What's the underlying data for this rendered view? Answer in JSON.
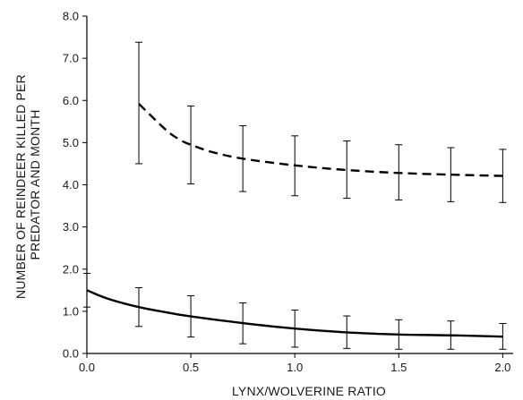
{
  "chart_data": {
    "type": "line",
    "title": "",
    "xlabel": "LYNX/WOLVERINE RATIO",
    "ylabel_lines": [
      "NUMBER OF REINDEER KILLED PER",
      "PREDATOR AND MONTH"
    ],
    "xlim": [
      0,
      2.05
    ],
    "ylim": [
      0,
      8.0
    ],
    "x_ticks": [
      0.0,
      0.5,
      1.0,
      1.5,
      2.0
    ],
    "x_tick_labels": [
      "0.0",
      "0.5",
      "1.0",
      "1.5",
      "2.0"
    ],
    "y_ticks": [
      0.0,
      1.0,
      2.0,
      3.0,
      4.0,
      5.0,
      6.0,
      7.0,
      8.0
    ],
    "y_tick_labels": [
      "0.0",
      "1.0",
      "2.0",
      "3.0",
      "4.0",
      "5.0",
      "6.0",
      "7.0",
      "8.0"
    ],
    "grid": false,
    "legend": "none",
    "series": [
      {
        "style": "dashed",
        "color": "#000000",
        "curve": [
          [
            0.25,
            5.92
          ],
          [
            0.3,
            5.68
          ],
          [
            0.35,
            5.44
          ],
          [
            0.4,
            5.22
          ],
          [
            0.45,
            5.06
          ],
          [
            0.5,
            4.95
          ],
          [
            0.6,
            4.78
          ],
          [
            0.75,
            4.62
          ],
          [
            1.0,
            4.46
          ],
          [
            1.25,
            4.35
          ],
          [
            1.5,
            4.28
          ],
          [
            1.75,
            4.24
          ],
          [
            2.0,
            4.21
          ]
        ],
        "error_bars": [
          {
            "x": 0.25,
            "low": 4.5,
            "high": 7.38
          },
          {
            "x": 0.5,
            "low": 4.02,
            "high": 5.87
          },
          {
            "x": 0.75,
            "low": 3.84,
            "high": 5.4
          },
          {
            "x": 1.0,
            "low": 3.74,
            "high": 5.16
          },
          {
            "x": 1.25,
            "low": 3.68,
            "high": 5.04
          },
          {
            "x": 1.5,
            "low": 3.64,
            "high": 4.95
          },
          {
            "x": 1.75,
            "low": 3.6,
            "high": 4.88
          },
          {
            "x": 2.0,
            "low": 3.58,
            "high": 4.84
          }
        ]
      },
      {
        "style": "solid",
        "color": "#000000",
        "curve": [
          [
            0.0,
            1.5
          ],
          [
            0.1,
            1.3
          ],
          [
            0.25,
            1.1
          ],
          [
            0.4,
            0.96
          ],
          [
            0.5,
            0.88
          ],
          [
            0.75,
            0.72
          ],
          [
            1.0,
            0.59
          ],
          [
            1.25,
            0.5
          ],
          [
            1.5,
            0.45
          ],
          [
            1.75,
            0.43
          ],
          [
            2.0,
            0.4
          ]
        ],
        "error_bars": [
          {
            "x": 0.0,
            "low": 1.1,
            "high": 1.9
          },
          {
            "x": 0.25,
            "low": 0.64,
            "high": 1.56
          },
          {
            "x": 0.5,
            "low": 0.39,
            "high": 1.37
          },
          {
            "x": 0.75,
            "low": 0.23,
            "high": 1.2
          },
          {
            "x": 1.0,
            "low": 0.15,
            "high": 1.03
          },
          {
            "x": 1.25,
            "low": 0.12,
            "high": 0.89
          },
          {
            "x": 1.5,
            "low": 0.1,
            "high": 0.8
          },
          {
            "x": 1.75,
            "low": 0.1,
            "high": 0.77
          },
          {
            "x": 2.0,
            "low": 0.1,
            "high": 0.71
          }
        ]
      }
    ]
  }
}
